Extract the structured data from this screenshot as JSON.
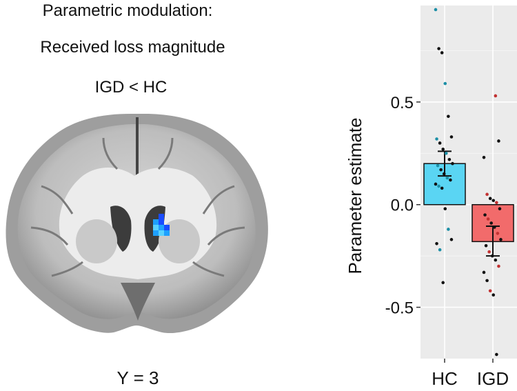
{
  "figure": {
    "title_line1": "Parametric modulation:",
    "title_line2": "Received loss magnitude",
    "contrast": "IGD < HC",
    "slice_label": "Y = 3"
  },
  "brain": {
    "cluster_colors": [
      "#1a4cff",
      "#1ea0ff",
      "#58d2ff"
    ]
  },
  "chart_data": {
    "type": "bar",
    "categories": [
      "HC",
      "IGD"
    ],
    "values": [
      0.2,
      -0.18
    ],
    "error_bars": [
      [
        0.14,
        0.26
      ],
      [
        -0.25,
        -0.105
      ]
    ],
    "ylabel": "Parameter estimate",
    "xlabel": "",
    "ylim": [
      -0.75,
      0.97
    ],
    "yticks": [
      0.5,
      0.0,
      -0.5
    ],
    "ytick_labels": [
      "0.5",
      "0.0",
      "-0.5"
    ],
    "grid": true,
    "bar_colors": [
      "#5ad5f3",
      "#f26b6b"
    ],
    "point_fill": [
      "#1c8fa6",
      "#c23232"
    ],
    "points": {
      "HC": [
        0.95,
        0.76,
        0.74,
        0.59,
        0.43,
        0.33,
        0.32,
        0.3,
        0.27,
        0.25,
        0.22,
        0.2,
        0.19,
        0.17,
        0.15,
        0.13,
        0.12,
        0.1,
        0.09,
        0.08,
        -0.02,
        -0.12,
        -0.17,
        -0.19,
        -0.22,
        -0.38
      ],
      "IGD": [
        0.53,
        0.31,
        0.23,
        0.05,
        0.03,
        0.02,
        0.01,
        -0.02,
        -0.05,
        -0.07,
        -0.09,
        -0.11,
        -0.14,
        -0.17,
        -0.2,
        -0.23,
        -0.25,
        -0.27,
        -0.3,
        -0.33,
        -0.37,
        -0.42,
        -0.44,
        -0.73
      ]
    }
  }
}
